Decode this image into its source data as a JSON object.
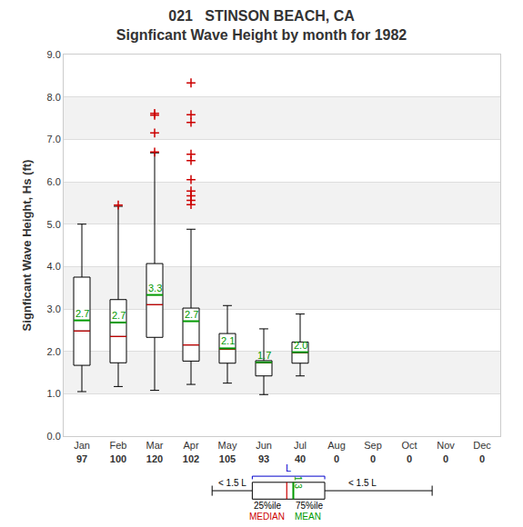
{
  "chart_data": {
    "type": "box",
    "title": "021   STINSON BEACH, CA",
    "subtitle": "Signficant Wave Height by month for 1982",
    "y_label": "Signficant Wave Height, Hs (ft)",
    "categories": [
      "Jan",
      "Feb",
      "Mar",
      "Apr",
      "May",
      "Jun",
      "Jul",
      "Aug",
      "Sep",
      "Oct",
      "Nov",
      "Dec"
    ],
    "counts": [
      97,
      100,
      120,
      102,
      105,
      93,
      40,
      0,
      0,
      0,
      0,
      0
    ],
    "lower_whisker": [
      1.05,
      1.17,
      1.08,
      1.22,
      1.25,
      0.98,
      1.42,
      null,
      null,
      null,
      null,
      null
    ],
    "q1": [
      1.67,
      1.73,
      2.33,
      1.77,
      1.72,
      1.42,
      1.72,
      null,
      null,
      null,
      null,
      null
    ],
    "median": [
      2.48,
      2.35,
      3.1,
      2.15,
      2.05,
      1.73,
      1.97,
      null,
      null,
      null,
      null,
      null
    ],
    "q3": [
      3.75,
      3.22,
      4.07,
      3.02,
      2.42,
      1.78,
      2.22,
      null,
      null,
      null,
      null,
      null
    ],
    "upper_whisker": [
      5.0,
      5.42,
      6.68,
      4.88,
      3.08,
      2.53,
      2.88,
      null,
      null,
      null,
      null,
      null
    ],
    "means": [
      2.73,
      2.68,
      3.33,
      2.71,
      2.07,
      1.74,
      1.98,
      null,
      null,
      null,
      null,
      null
    ],
    "mean_labels": [
      "2.7",
      "2.7",
      "3.3",
      "2.7",
      "2.1",
      "1.7",
      "2.0",
      null,
      null,
      null,
      null,
      null
    ],
    "outliers": [
      [],
      [
        5.45
      ],
      [
        7.61,
        7.57,
        7.15,
        6.7
      ],
      [
        8.33,
        7.58,
        7.4,
        6.65,
        6.5,
        6.05,
        5.78,
        5.67,
        5.56,
        5.46
      ],
      [],
      [],
      [],
      [],
      [],
      [],
      [],
      []
    ],
    "ylim": [
      0,
      9
    ],
    "yticks": [
      {
        "value": 0,
        "label": "0.0"
      },
      {
        "value": 1,
        "label": "1.0"
      },
      {
        "value": 2,
        "label": "2.0"
      },
      {
        "value": 3,
        "label": "3.0"
      },
      {
        "value": 4,
        "label": "4.0"
      },
      {
        "value": 5,
        "label": "5.0"
      },
      {
        "value": 6,
        "label": "6.0"
      },
      {
        "value": 7,
        "label": "7.0"
      },
      {
        "value": 8,
        "label": "8.0"
      },
      {
        "value": 9,
        "label": "9.0"
      }
    ],
    "grid": true,
    "color": "#000000",
    "median_color": "#cc0000",
    "mean_color": "#009900",
    "outlier_color": "#cc0000",
    "marker": "cross",
    "key": {
      "whisker_text": "< 1.5 L",
      "box_text": "L",
      "q1_text": "25%ile",
      "q3_text": "75%ile",
      "median_text": "MEDIAN",
      "mean_text": "MEAN",
      "sample_mean_label": "1.3"
    }
  }
}
